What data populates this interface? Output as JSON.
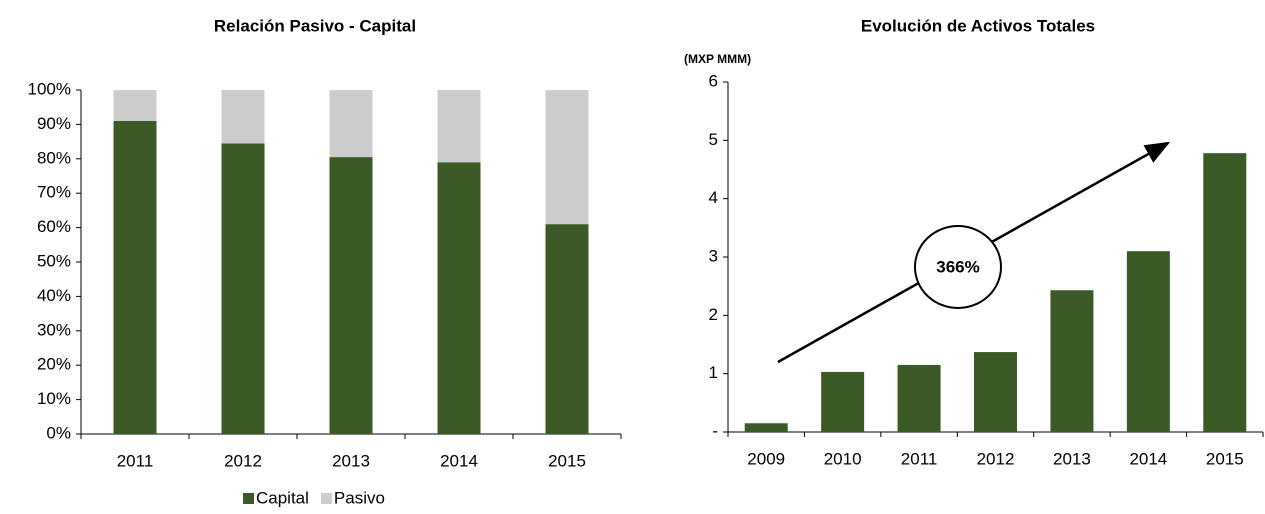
{
  "chart_data": [
    {
      "type": "stacked_bar",
      "title": "Relación Pasivo - Capital",
      "categories": [
        "2011",
        "2012",
        "2013",
        "2014",
        "2015"
      ],
      "series": [
        {
          "name": "Capital",
          "color": "#3b5a25",
          "values": [
            91,
            84.5,
            80.5,
            79,
            61
          ]
        },
        {
          "name": "Pasivo",
          "color": "#cccccc",
          "values": [
            9,
            15.5,
            19.5,
            21,
            39
          ]
        }
      ],
      "ylim": [
        0,
        100
      ],
      "yticks": [
        {
          "value": 0,
          "label": "0%"
        },
        {
          "value": 10,
          "label": "10%"
        },
        {
          "value": 20,
          "label": "20%"
        },
        {
          "value": 30,
          "label": "30%"
        },
        {
          "value": 40,
          "label": "40%"
        },
        {
          "value": 50,
          "label": "50%"
        },
        {
          "value": 60,
          "label": "60%"
        },
        {
          "value": 70,
          "label": "70%"
        },
        {
          "value": 80,
          "label": "80%"
        },
        {
          "value": 90,
          "label": "90%"
        },
        {
          "value": 100,
          "label": "100%"
        }
      ],
      "grid": false,
      "legend": "bottom"
    },
    {
      "type": "bar",
      "title": "Evolución de Activos Totales",
      "y_axis_label": "(MXP MMM)",
      "annotation": "366%",
      "categories": [
        "2009",
        "2010",
        "2011",
        "2012",
        "2013",
        "2014",
        "2015"
      ],
      "values": [
        0.15,
        1.03,
        1.15,
        1.37,
        2.43,
        3.1,
        4.78
      ],
      "color": "#3b5a25",
      "ylim": [
        0,
        6
      ],
      "yticks": [
        {
          "value": 0,
          "label": "-"
        },
        1,
        2,
        3,
        4,
        5,
        6
      ],
      "grid": false
    }
  ]
}
